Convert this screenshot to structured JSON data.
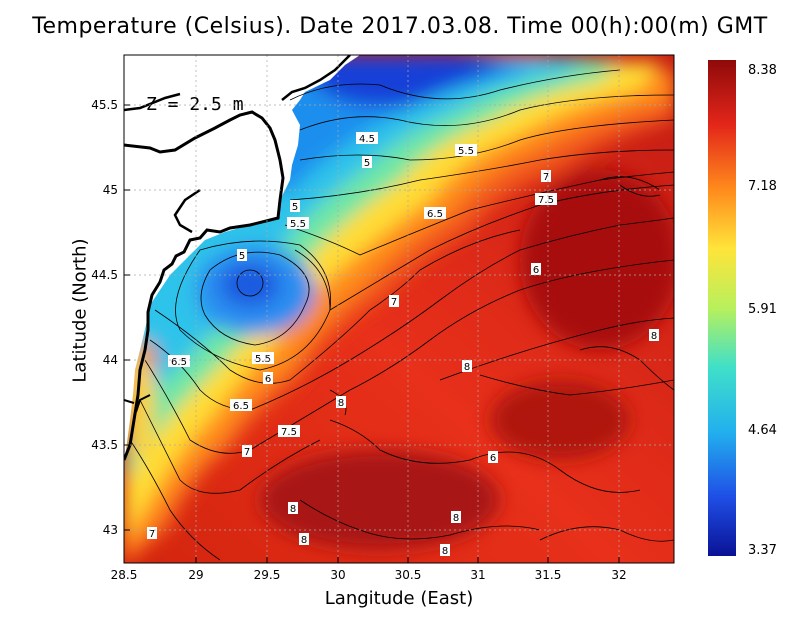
{
  "title": "Temperature (Celsius). Date 2017.03.08. Time 00(h):00(m) GMT",
  "depth_label": "Z = 2.5 m",
  "xlabel": "Langitude (East)",
  "ylabel": "Latitude (North)",
  "x_ticks": [
    "28.5",
    "29",
    "29.5",
    "30",
    "30.5",
    "31",
    "31.5",
    "32"
  ],
  "y_ticks": [
    "43",
    "43.5",
    "44",
    "44.5",
    "45",
    "45.5"
  ],
  "colorbar": {
    "ticks": [
      "8.38",
      "7.18",
      "5.91",
      "4.64",
      "3.37"
    ],
    "min": 3.37,
    "max": 8.38,
    "colors": [
      "#0a1296",
      "#1f4fe6",
      "#22b0ee",
      "#3fe0c9",
      "#b8f05c",
      "#ffe43a",
      "#ff8a1c",
      "#e3261a",
      "#8f0a0a"
    ]
  },
  "contour_labels": [
    {
      "text": "4.5"
    },
    {
      "text": "5"
    },
    {
      "text": "5.5"
    },
    {
      "text": "5"
    },
    {
      "text": "5.5"
    },
    {
      "text": "6.5"
    },
    {
      "text": "7"
    },
    {
      "text": "7.5"
    },
    {
      "text": "5"
    },
    {
      "text": "6"
    },
    {
      "text": "7"
    },
    {
      "text": "8"
    },
    {
      "text": "6.5"
    },
    {
      "text": "5.5"
    },
    {
      "text": "6"
    },
    {
      "text": "8"
    },
    {
      "text": "6.5"
    },
    {
      "text": "8"
    },
    {
      "text": "7.5"
    },
    {
      "text": "7"
    },
    {
      "text": "6"
    },
    {
      "text": "8"
    },
    {
      "text": "8"
    },
    {
      "text": "8"
    },
    {
      "text": "8"
    },
    {
      "text": "7"
    }
  ],
  "map_data": {
    "type": "heatmap",
    "variable": "Temperature (Celsius)",
    "date": "2017.03.08",
    "time": "00(h):00(m) GMT",
    "depth": "Z = 2.5 m",
    "lon_range": [
      28.5,
      32.4
    ],
    "lat_range": [
      42.8,
      45.8
    ],
    "value_range": [
      3.37,
      8.38
    ]
  }
}
